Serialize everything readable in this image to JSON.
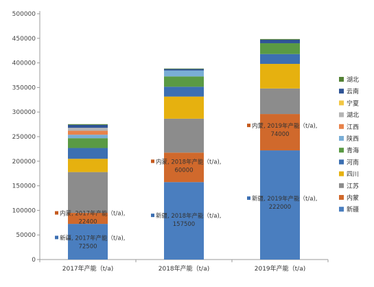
{
  "chart_data": {
    "type": "bar",
    "stacked": true,
    "categories": [
      "2017年产能（t/a)",
      "2018年产能（t/a)",
      "2019年产能（t/a)"
    ],
    "ylim": [
      0,
      500000
    ],
    "yticks": [
      0,
      50000,
      100000,
      150000,
      200000,
      250000,
      300000,
      350000,
      400000,
      450000,
      500000
    ],
    "grid": false,
    "legend_position": "right",
    "series": [
      {
        "name": "新疆",
        "color": "#4a7ebf",
        "values": [
          72500,
          157500,
          222000
        ]
      },
      {
        "name": "内蒙",
        "color": "#d0692c",
        "values": [
          22400,
          60000,
          74000
        ]
      },
      {
        "name": "江苏",
        "color": "#8c8c8c",
        "values": [
          83000,
          69000,
          52000
        ]
      },
      {
        "name": "四川",
        "color": "#e6b10f",
        "values": [
          27000,
          45000,
          50000
        ]
      },
      {
        "name": "河南",
        "color": "#3c6fb2",
        "values": [
          22000,
          20000,
          20000
        ]
      },
      {
        "name": "青海",
        "color": "#5a9a44",
        "values": [
          20000,
          21000,
          22000
        ]
      },
      {
        "name": "陕西",
        "color": "#7aaed6",
        "values": [
          7000,
          12000,
          0
        ]
      },
      {
        "name": "江西",
        "color": "#e8834b",
        "values": [
          8000,
          0,
          0
        ]
      },
      {
        "name": "湖北",
        "color": "#b5b5b5",
        "values": [
          6000,
          0,
          0
        ]
      },
      {
        "name": "宁夏",
        "color": "#f2c744",
        "values": [
          0,
          0,
          0
        ]
      },
      {
        "name": "云南",
        "color": "#2f5496",
        "values": [
          6000,
          3000,
          7000
        ]
      },
      {
        "name": "湖北",
        "color": "#548235",
        "values": [
          1500,
          1000,
          1500
        ]
      }
    ],
    "annotations": [
      {
        "text": "新疆, 2017年产能（t/a),",
        "value": "72500",
        "category": 0,
        "y": 40000,
        "color": "#3c6fb2"
      },
      {
        "text": "内蒙, 2017年产能（t/a),",
        "value": "22400",
        "category": 0,
        "y": 90000,
        "color": "#c55a1e"
      },
      {
        "text": "新疆, 2018年产能（t/a),",
        "value": "157500",
        "category": 1,
        "y": 85000,
        "color": "#3c6fb2"
      },
      {
        "text": "内蒙, 2018年产能（t/a),",
        "value": "60000",
        "category": 1,
        "y": 195000,
        "color": "#c55a1e"
      },
      {
        "text": "新疆, 2019年产能（t/a),",
        "value": "222000",
        "category": 2,
        "y": 120000,
        "color": "#3c6fb2"
      },
      {
        "text": "内蒙, 2019年产能（t/a),",
        "value": "74000",
        "category": 2,
        "y": 268000,
        "color": "#c55a1e"
      }
    ]
  }
}
